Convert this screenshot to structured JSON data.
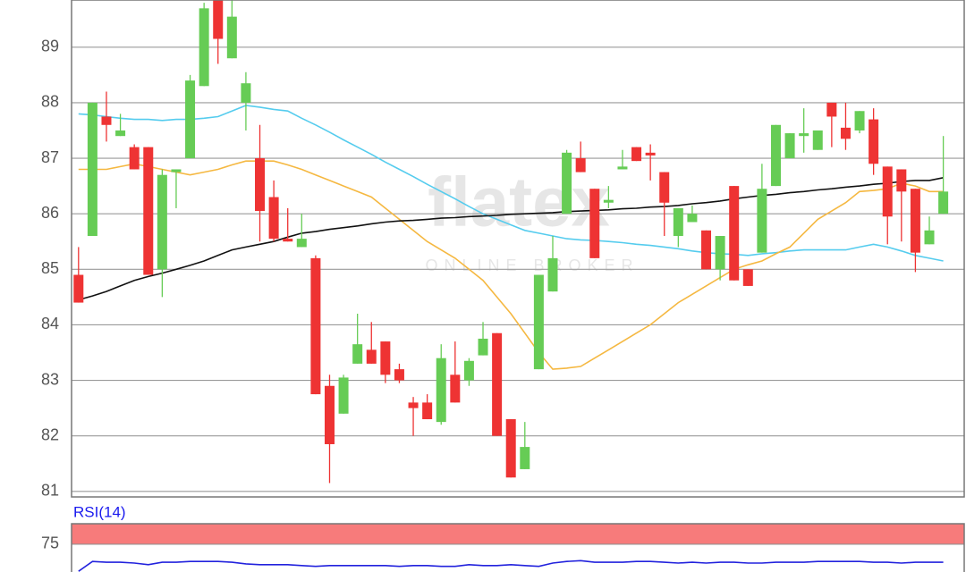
{
  "chart_data": [
    {
      "type": "candlestick",
      "watermark": "flatex",
      "watermark_sub": "ONLINE BROKER",
      "ylim": [
        80.9,
        89.85
      ],
      "yticks": [
        81,
        82,
        83,
        84,
        85,
        86,
        87,
        88,
        89
      ],
      "grid": true,
      "up_color": "#66cc55",
      "down_color": "#ee3333",
      "open": [
        84.9,
        85.6,
        87.75,
        87.4,
        87.2,
        87.2,
        85.0,
        86.75,
        87.0,
        88.3,
        89.85,
        88.8,
        88.0,
        87.0,
        86.3,
        85.55,
        85.4,
        85.2,
        82.9,
        82.4,
        83.3,
        83.55,
        83.7,
        83.2,
        82.6,
        82.6,
        82.25,
        83.1,
        83.0,
        83.45,
        83.85,
        82.3,
        81.4,
        83.2,
        84.6,
        86.0,
        87.0,
        86.45,
        86.2,
        86.8,
        87.2,
        87.1,
        86.75,
        85.6,
        85.85,
        85.7,
        85.0,
        86.5,
        85.0,
        85.3,
        86.5,
        87.0,
        87.4,
        87.15,
        88.0,
        87.55,
        87.5,
        87.7,
        86.85,
        86.8,
        86.45,
        85.45,
        86.0
      ],
      "high": [
        85.4,
        88.0,
        88.2,
        87.8,
        87.25,
        87.2,
        86.8,
        86.8,
        88.5,
        89.8,
        89.85,
        89.85,
        88.55,
        87.6,
        86.6,
        86.1,
        86.0,
        85.25,
        83.1,
        83.1,
        84.2,
        84.05,
        83.7,
        83.3,
        82.7,
        82.75,
        83.65,
        83.7,
        83.4,
        84.05,
        83.85,
        82.3,
        82.25,
        84.9,
        85.6,
        87.15,
        87.3,
        86.45,
        86.5,
        87.15,
        87.2,
        87.25,
        86.75,
        86.1,
        86.15,
        85.7,
        85.6,
        86.5,
        85.0,
        86.9,
        87.6,
        87.45,
        87.9,
        87.5,
        88.0,
        88.0,
        87.85,
        87.9,
        86.85,
        86.8,
        86.45,
        85.95,
        87.4
      ],
      "low": [
        84.4,
        85.6,
        87.3,
        87.4,
        86.8,
        84.9,
        84.5,
        86.1,
        87.0,
        88.3,
        88.7,
        88.8,
        87.5,
        85.5,
        85.5,
        85.5,
        85.4,
        82.75,
        81.15,
        82.4,
        83.3,
        83.3,
        82.95,
        82.95,
        82.0,
        82.3,
        82.2,
        82.6,
        82.9,
        83.45,
        82.0,
        81.25,
        81.4,
        83.2,
        84.6,
        86.0,
        86.75,
        85.2,
        86.1,
        86.8,
        86.95,
        86.6,
        85.6,
        85.4,
        85.85,
        85.0,
        84.8,
        84.8,
        84.7,
        85.3,
        86.5,
        87.0,
        87.1,
        87.15,
        87.2,
        87.15,
        87.45,
        86.7,
        85.45,
        85.5,
        84.95,
        85.45,
        86.0
      ],
      "close": [
        84.4,
        88.0,
        87.6,
        87.5,
        86.8,
        84.9,
        86.7,
        86.8,
        88.4,
        89.7,
        89.15,
        89.55,
        88.35,
        86.05,
        85.55,
        85.5,
        85.55,
        82.75,
        81.85,
        83.05,
        83.65,
        83.3,
        83.1,
        83.0,
        82.5,
        82.3,
        83.4,
        82.6,
        83.35,
        83.75,
        82.0,
        81.25,
        81.8,
        84.9,
        85.2,
        87.1,
        86.75,
        85.2,
        86.25,
        86.85,
        86.95,
        87.05,
        86.2,
        86.1,
        86.0,
        85.0,
        85.6,
        84.8,
        84.7,
        86.45,
        87.6,
        87.45,
        87.45,
        87.5,
        87.75,
        87.35,
        87.85,
        86.9,
        85.95,
        86.4,
        85.3,
        85.7,
        86.4
      ],
      "series": [
        {
          "color": "#55ccee",
          "values": [
            87.8,
            87.78,
            87.75,
            87.72,
            87.7,
            87.7,
            87.68,
            87.7,
            87.7,
            87.72,
            87.75,
            87.85,
            87.95,
            87.92,
            87.88,
            87.85,
            87.72,
            87.6,
            87.47,
            87.33,
            87.2,
            87.07,
            86.93,
            86.8,
            86.67,
            86.53,
            86.4,
            86.27,
            86.13,
            86.0,
            85.9,
            85.8,
            85.7,
            85.65,
            85.6,
            85.55,
            85.53,
            85.52,
            85.5,
            85.48,
            85.45,
            85.43,
            85.4,
            85.37,
            85.33,
            85.3,
            85.28,
            85.27,
            85.25,
            85.28,
            85.3,
            85.33,
            85.35,
            85.35,
            85.35,
            85.35,
            85.4,
            85.45,
            85.4,
            85.33,
            85.25,
            85.2,
            85.15
          ]
        },
        {
          "color": "#f5b841",
          "values": [
            86.8,
            86.8,
            86.8,
            86.85,
            86.9,
            86.85,
            86.8,
            86.75,
            86.7,
            86.75,
            86.8,
            86.88,
            86.95,
            86.95,
            86.95,
            86.88,
            86.8,
            86.7,
            86.6,
            86.5,
            86.4,
            86.3,
            86.1,
            85.9,
            85.7,
            85.5,
            85.35,
            85.2,
            85.0,
            84.8,
            84.5,
            84.2,
            83.85,
            83.5,
            83.2,
            83.22,
            83.25,
            83.4,
            83.55,
            83.7,
            83.85,
            84.0,
            84.2,
            84.4,
            84.55,
            84.7,
            84.85,
            85.0,
            85.08,
            85.15,
            85.28,
            85.4,
            85.65,
            85.9,
            86.05,
            86.2,
            86.4,
            86.42,
            86.45,
            86.55,
            86.5,
            86.4,
            86.4
          ]
        },
        {
          "color": "#111111",
          "values": [
            84.45,
            84.52,
            84.6,
            84.7,
            84.8,
            84.87,
            84.93,
            85.0,
            85.07,
            85.15,
            85.25,
            85.35,
            85.4,
            85.45,
            85.5,
            85.58,
            85.65,
            85.68,
            85.72,
            85.75,
            85.78,
            85.82,
            85.85,
            85.87,
            85.88,
            85.9,
            85.92,
            85.93,
            85.95,
            85.96,
            85.97,
            85.99,
            86.0,
            86.01,
            86.02,
            86.04,
            86.05,
            86.06,
            86.07,
            86.09,
            86.1,
            86.12,
            86.13,
            86.15,
            86.18,
            86.2,
            86.23,
            86.27,
            86.3,
            86.33,
            86.35,
            86.38,
            86.4,
            86.43,
            86.45,
            86.48,
            86.5,
            86.53,
            86.55,
            86.58,
            86.6,
            86.6,
            86.65
          ]
        }
      ]
    },
    {
      "type": "line",
      "title": "RSI(14)",
      "ylim": [
        40,
        100
      ],
      "yticks": [
        75
      ],
      "band": [
        75,
        100
      ],
      "band_color": "#f77b7b",
      "series": [
        {
          "color": "#2222dd",
          "values": [
            42,
            54,
            53,
            53,
            52,
            50,
            53,
            53,
            54,
            54,
            54,
            53,
            51,
            50,
            50,
            50,
            49,
            48,
            49,
            49,
            49,
            49,
            49,
            48,
            49,
            49,
            48,
            48,
            50,
            49,
            49,
            50,
            49,
            48,
            52,
            54,
            55,
            53,
            53,
            53,
            54,
            54,
            53,
            52,
            53,
            52,
            53,
            53,
            52,
            52,
            53,
            53,
            53,
            54,
            54,
            54,
            54,
            53,
            53,
            52,
            53,
            53,
            53
          ]
        }
      ]
    }
  ]
}
